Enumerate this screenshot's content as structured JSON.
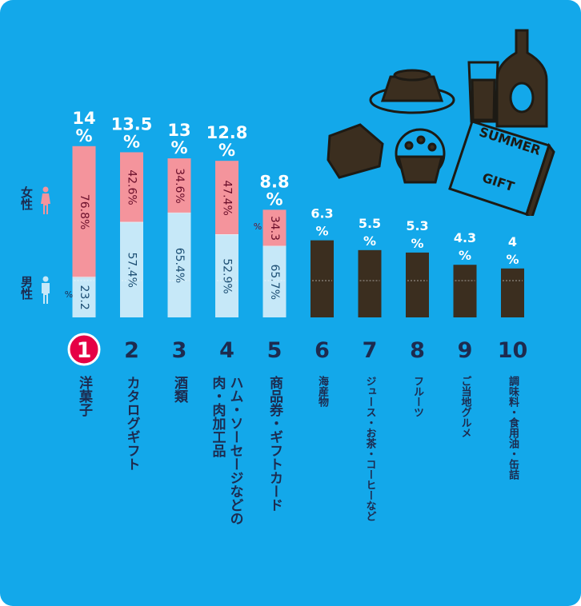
{
  "chart_data": {
    "type": "bar",
    "ranks": [
      "1",
      "2",
      "3",
      "4",
      "5",
      "6",
      "7",
      "8",
      "9",
      "10"
    ],
    "categories": [
      "洋菓子",
      "カタログギフト",
      "酒類",
      "ハム・ソーセージなどの|肉・肉加工品",
      "商品券・ギフトカード",
      "海産物",
      "ジュース・お茶・コーヒーなど",
      "フルーツ",
      "ご当地グルメ",
      "調味料・食用油・缶詰"
    ],
    "values": [
      14,
      13.5,
      13,
      12.8,
      8.8,
      6.3,
      5.5,
      5.3,
      4.3,
      4
    ],
    "value_labels": [
      "14",
      "13.5",
      "13",
      "12.8",
      "8.8",
      "6.3",
      "5.5",
      "5.3",
      "4.3",
      "4"
    ],
    "unit": "%",
    "series": [
      {
        "name": "女性",
        "values": [
          76.8,
          42.6,
          34.6,
          47.4,
          34.3,
          null,
          null,
          null,
          null,
          null
        ]
      },
      {
        "name": "男性",
        "values": [
          23.2,
          57.4,
          65.4,
          52.9,
          65.7,
          null,
          null,
          null,
          null,
          null
        ]
      }
    ],
    "segment_labels": {
      "female": [
        "76.8%",
        "42.6%",
        "34.6%",
        "47.4%",
        "34.3"
      ],
      "male": [
        "23.2",
        "57.4%",
        "65.4%",
        "52.9%",
        "65.7%"
      ]
    },
    "small_pct_marks": [
      "%",
      "%"
    ],
    "colors": {
      "background": "#13a8ea",
      "female": "#f4949c",
      "male": "#c6e8f8",
      "other": "#3b2e1f",
      "rank1_circle": "#e60045",
      "text": "#1d2b4f"
    },
    "ylim": [
      0,
      14
    ],
    "legend": {
      "female": "女性",
      "male": "男性",
      "placement": "left"
    },
    "decoration": {
      "gift_text_1": "SUMMER",
      "gift_text_2": "GIFT",
      "icons": [
        "pudding-icon",
        "beer-glass-icon",
        "bottle-icon",
        "sweet-box-icon",
        "cupcake-icon",
        "gift-catalog-icon"
      ]
    }
  }
}
